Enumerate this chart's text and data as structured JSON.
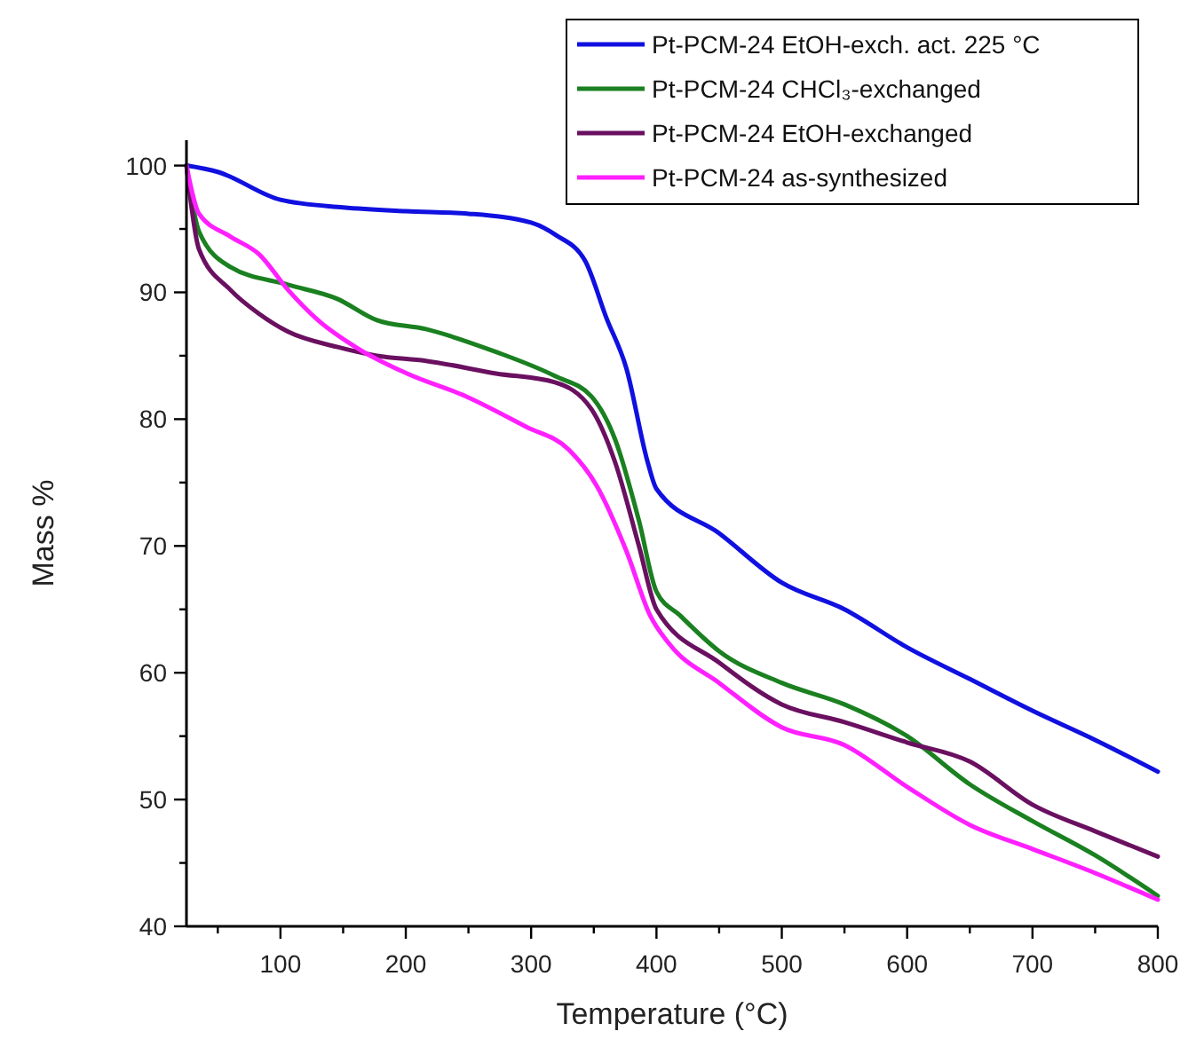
{
  "chart_data": {
    "type": "line",
    "xlabel": "Temperature (°C)",
    "ylabel": "Mass %",
    "xlim": [
      25,
      800
    ],
    "ylim": [
      40,
      102
    ],
    "xticks": [
      {
        "value": 50,
        "label": null
      },
      100,
      {
        "value": 150,
        "label": null
      },
      200,
      {
        "value": 250,
        "label": null
      },
      300,
      {
        "value": 350,
        "label": null
      },
      400,
      {
        "value": 450,
        "label": null
      },
      500,
      {
        "value": 550,
        "label": null
      },
      600,
      {
        "value": 650,
        "label": null
      },
      700,
      {
        "value": 750,
        "label": null
      },
      800
    ],
    "yticks": [
      40,
      {
        "value": 45,
        "label": null
      },
      50,
      {
        "value": 55,
        "label": null
      },
      60,
      {
        "value": 65,
        "label": null
      },
      70,
      {
        "value": 75,
        "label": null
      },
      80,
      {
        "value": 85,
        "label": null
      },
      90,
      {
        "value": 95,
        "label": null
      },
      100
    ],
    "grid": false,
    "legend": "top right",
    "marker": "none",
    "line_style": "solid",
    "series": [
      {
        "name": "Pt-PCM-24 EtOH-exch. act. 225 °C",
        "color": "#1010e0",
        "x": [
          25,
          50,
          100,
          150,
          200,
          250,
          300,
          320,
          343,
          360,
          376,
          393,
          400,
          450,
          500,
          550,
          600,
          650,
          700,
          750,
          800
        ],
        "values": [
          100,
          99.5,
          97.3,
          96.7,
          96.4,
          96.2,
          95.5,
          94.5,
          92.5,
          88,
          84,
          76.6,
          74.5,
          71,
          67.1,
          65,
          62,
          59.5,
          57,
          54.7,
          52.2
        ]
      },
      {
        "name": "Pt-PCM-24 CHCl₃-exchanged",
        "color": "#1a8020",
        "x": [
          25,
          35,
          60,
          106,
          145,
          177,
          216,
          272,
          319,
          348,
          367,
          386,
          400,
          419,
          450,
          500,
          550,
          600,
          650,
          700,
          750,
          800
        ],
        "values": [
          100,
          94.8,
          92,
          90.6,
          89.5,
          87.8,
          87.1,
          85.3,
          83.4,
          81.8,
          78.4,
          72,
          66.4,
          64.5,
          61.7,
          59.2,
          57.5,
          55,
          51.2,
          48.3,
          45.6,
          42.4
        ]
      },
      {
        "name": "Pt-PCM-24 EtOH-exchanged",
        "color": "#6a1060",
        "x": [
          25,
          35,
          60,
          83,
          106,
          145,
          177,
          216,
          272,
          319,
          348,
          367,
          386,
          400,
          450,
          500,
          550,
          600,
          650,
          700,
          750,
          800
        ],
        "values": [
          100,
          93.4,
          90.2,
          88.3,
          86.9,
          85.7,
          85,
          84.6,
          83.6,
          82.9,
          80.8,
          76.6,
          70,
          65,
          60.8,
          57.5,
          56.1,
          54.5,
          53,
          49.6,
          47.5,
          45.5
        ]
      },
      {
        "name": "Pt-PCM-24 as-synthesized",
        "color": "#ff20ff",
        "x": [
          25,
          35,
          60,
          83,
          106,
          130,
          163,
          201,
          248,
          296,
          330,
          352,
          376,
          395,
          410,
          450,
          500,
          550,
          600,
          650,
          700,
          750,
          800
        ],
        "values": [
          100,
          96.2,
          94.4,
          93,
          90.2,
          87.8,
          85.5,
          83.6,
          81.8,
          79.4,
          77.6,
          74.8,
          69.6,
          64.5,
          62.3,
          59.2,
          55.7,
          54.3,
          51,
          48,
          46.1,
          44.2,
          42.1
        ]
      }
    ]
  }
}
